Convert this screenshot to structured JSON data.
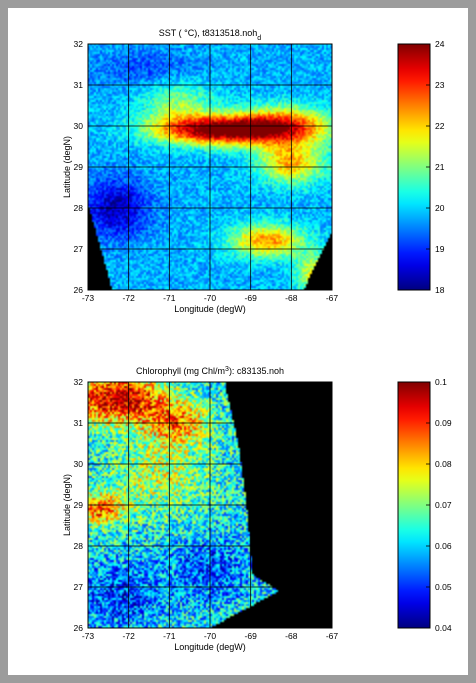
{
  "chart_data": [
    {
      "type": "heatmap",
      "title": "SST ( °C), t8313518.noh",
      "title_subscript": "d",
      "xlabel": "Longitude (degW)",
      "ylabel": "Latitude (degN)",
      "xlim": [
        -73,
        -67
      ],
      "ylim": [
        26,
        32
      ],
      "x_ticks": [
        -73,
        -72,
        -71,
        -70,
        -69,
        -68,
        -67
      ],
      "y_ticks": [
        26,
        27,
        28,
        29,
        30,
        31,
        32
      ],
      "grid": true,
      "colormap": "jet",
      "color_range": [
        18,
        24
      ],
      "colorbar_ticks": [
        18,
        19,
        20,
        21,
        22,
        23,
        24
      ],
      "colorbar_placement": "right",
      "field": {
        "background": 19.8,
        "blobs": [
          {
            "x": -69.8,
            "y": 29.9,
            "rx": 1.5,
            "ry": 0.35,
            "v": 4.2
          },
          {
            "x": -68.2,
            "y": 30.0,
            "rx": 1.2,
            "ry": 0.45,
            "v": 3.0
          },
          {
            "x": -68.0,
            "y": 29.1,
            "rx": 0.8,
            "ry": 0.5,
            "v": 2.4
          },
          {
            "x": -68.6,
            "y": 27.2,
            "rx": 0.9,
            "ry": 0.4,
            "v": 2.6
          },
          {
            "x": -70.8,
            "y": 30.5,
            "rx": 0.9,
            "ry": 0.6,
            "v": 1.3
          },
          {
            "x": -72.3,
            "y": 28.0,
            "rx": 0.8,
            "ry": 0.7,
            "v": -1.5
          },
          {
            "x": -71.6,
            "y": 31.4,
            "rx": 1.3,
            "ry": 0.5,
            "v": -0.6
          },
          {
            "x": -67.4,
            "y": 26.4,
            "rx": 0.5,
            "ry": 0.5,
            "v": 1.8
          }
        ],
        "noise": 0.5,
        "mask_polygons": [
          [
            [
              -73,
              28.1
            ],
            [
              -72.4,
              26
            ],
            [
              -73,
              26
            ]
          ],
          [
            [
              -67.4,
              26.6
            ],
            [
              -67.0,
              27.4
            ],
            [
              -67,
              26
            ],
            [
              -67.7,
              26
            ]
          ]
        ],
        "mask_value": 0
      }
    },
    {
      "type": "heatmap",
      "title": "Chlorophyll (mg Chl/m",
      "title_superscript": "3",
      "title_suffix": "): c83135.noh",
      "xlabel": "Longitude (degW)",
      "ylabel": "Latitude (degN)",
      "xlim": [
        -73,
        -67
      ],
      "ylim": [
        26,
        32
      ],
      "x_ticks": [
        -73,
        -72,
        -71,
        -70,
        -69,
        -68,
        -67
      ],
      "y_ticks": [
        26,
        27,
        28,
        29,
        30,
        31,
        32
      ],
      "grid": true,
      "colormap": "jet",
      "color_range": [
        0.04,
        0.1
      ],
      "colorbar_ticks": [
        0.04,
        0.05,
        0.06,
        0.07,
        0.08,
        0.09,
        0.1
      ],
      "colorbar_placement": "right",
      "field": {
        "background": 0.062,
        "blobs": [
          {
            "x": -72.3,
            "y": 31.6,
            "rx": 1.2,
            "ry": 0.6,
            "v": 0.035
          },
          {
            "x": -70.8,
            "y": 31.0,
            "rx": 0.8,
            "ry": 0.5,
            "v": 0.02
          },
          {
            "x": -72.7,
            "y": 28.9,
            "rx": 0.6,
            "ry": 0.4,
            "v": 0.025
          },
          {
            "x": -71.2,
            "y": 29.8,
            "rx": 1.2,
            "ry": 1.0,
            "v": 0.012
          },
          {
            "x": -72.2,
            "y": 26.8,
            "rx": 1.0,
            "ry": 0.8,
            "v": -0.012
          },
          {
            "x": -70.0,
            "y": 27.4,
            "rx": 1.0,
            "ry": 0.8,
            "v": -0.01
          }
        ],
        "noise": 0.012,
        "mask_polygons": [
          [
            [
              -69.6,
              32
            ],
            [
              -67,
              32
            ],
            [
              -67,
              26
            ],
            [
              -68.35,
              26
            ],
            [
              -68.3,
              26.9
            ],
            [
              -68.95,
              27.3
            ],
            [
              -69.1,
              29.0
            ],
            [
              -69.3,
              30.5
            ],
            [
              -69.6,
              31.8
            ]
          ],
          [
            [
              -73,
              26
            ],
            [
              -70.0,
              26
            ],
            [
              -68.3,
              26.9
            ],
            [
              -68.35,
              26
            ],
            [
              -73,
              26
            ]
          ]
        ],
        "mask_value": 0
      }
    }
  ]
}
